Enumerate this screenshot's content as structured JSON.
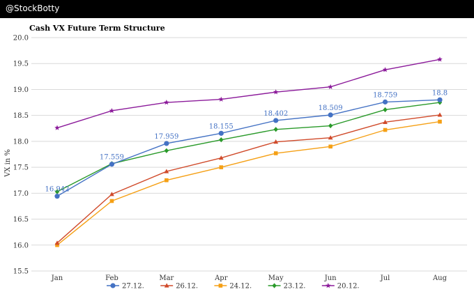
{
  "header": {
    "brand": "@StockBotty"
  },
  "chart_data": {
    "type": "line",
    "title": "Cash VX Future Term Structure",
    "xlabel": "",
    "ylabel": "VX in %",
    "categories": [
      "Jan",
      "Feb",
      "Mar",
      "Apr",
      "May",
      "Jun",
      "Jul",
      "Aug"
    ],
    "ylim": [
      15.5,
      20.0
    ],
    "yticks": [
      "15.5",
      "16.0",
      "16.5",
      "17.0",
      "17.5",
      "18.0",
      "18.5",
      "19.0",
      "19.5",
      "20.0"
    ],
    "grid": true,
    "legend": "bottom",
    "series": [
      {
        "name": "27.12.",
        "color": "#4472c4",
        "marker": "circle",
        "values": [
          16.942,
          17.559,
          17.959,
          18.155,
          18.402,
          18.509,
          18.759,
          18.8
        ],
        "labels": [
          "16.942",
          "17.559",
          "17.959",
          "18.155",
          "18.402",
          "18.509",
          "18.759",
          "18.8"
        ]
      },
      {
        "name": "26.12.",
        "color": "#d04a2a",
        "marker": "triangle",
        "values": [
          16.04,
          16.98,
          17.42,
          17.68,
          17.99,
          18.07,
          18.37,
          18.51
        ]
      },
      {
        "name": "24.12.",
        "color": "#f5a015",
        "marker": "square",
        "values": [
          16.0,
          16.85,
          17.25,
          17.5,
          17.77,
          17.9,
          18.22,
          18.38
        ]
      },
      {
        "name": "23.12.",
        "color": "#2a9a2a",
        "marker": "diamond",
        "values": [
          17.03,
          17.57,
          17.82,
          18.03,
          18.23,
          18.3,
          18.61,
          18.75
        ]
      },
      {
        "name": "20.12.",
        "color": "#8b1a9a",
        "marker": "star",
        "values": [
          18.26,
          18.59,
          18.75,
          18.81,
          18.95,
          19.05,
          19.38,
          19.58
        ]
      }
    ]
  }
}
